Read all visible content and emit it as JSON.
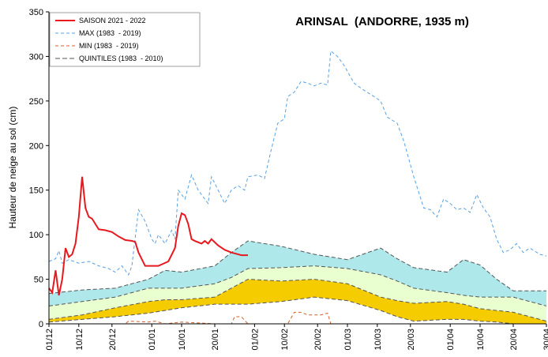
{
  "chart_data": {
    "type": "line",
    "title": "ARINSAL  (ANDORRE, 1935 m)",
    "y_label": "Hauteur de neige au sol (cm)",
    "xlim": [
      0,
      150
    ],
    "ylim": [
      0,
      350
    ],
    "yticks": [
      0,
      50,
      100,
      150,
      200,
      250,
      300,
      350
    ],
    "xticks": [
      {
        "value": 0,
        "label": "01/12"
      },
      {
        "value": 9,
        "label": "10/12"
      },
      {
        "value": 19,
        "label": "20/12"
      },
      {
        "value": 31,
        "label": "01/01"
      },
      {
        "value": 40,
        "label": "10/01"
      },
      {
        "value": 50,
        "label": "20/01"
      },
      {
        "value": 62,
        "label": "01/02"
      },
      {
        "value": 71,
        "label": "10/02"
      },
      {
        "value": 81,
        "label": "20/02"
      },
      {
        "value": 90,
        "label": "01/03"
      },
      {
        "value": 99,
        "label": "10/03"
      },
      {
        "value": 109,
        "label": "20/03"
      },
      {
        "value": 121,
        "label": "01/04"
      },
      {
        "value": 130,
        "label": "10/04"
      },
      {
        "value": 140,
        "label": "20/04"
      },
      {
        "value": 150,
        "label": "30/04"
      }
    ],
    "series": [
      {
        "name": "SAISON 2021 - 2022",
        "color": "#e8191e",
        "dash": "none",
        "width": 2,
        "x": [
          0,
          1,
          2,
          3,
          4,
          5,
          6,
          7,
          8,
          9,
          10,
          11,
          12,
          13,
          14,
          15,
          17,
          19,
          21,
          23,
          25,
          26,
          27,
          29,
          33,
          36,
          38,
          39,
          40,
          41,
          42,
          43,
          44,
          46,
          47,
          48,
          49,
          51,
          53,
          55,
          57,
          58,
          60
        ],
        "values": [
          40,
          35,
          60,
          32,
          50,
          85,
          75,
          78,
          90,
          120,
          165,
          130,
          120,
          118,
          112,
          106,
          105,
          103,
          98,
          94,
          93,
          92,
          80,
          65,
          65,
          70,
          85,
          110,
          124,
          122,
          112,
          95,
          93,
          90,
          93,
          90,
          95,
          88,
          83,
          80,
          78,
          77,
          77
        ]
      },
      {
        "name": "MAX (1983  - 2019)",
        "color": "#5aa0e0",
        "dash": "4,3",
        "width": 1,
        "x": [
          0,
          2,
          3,
          4,
          6,
          9,
          12,
          15,
          18,
          20,
          22,
          24,
          25,
          27,
          29,
          31,
          32,
          33,
          35,
          37,
          38,
          39,
          41,
          43,
          45,
          47,
          48,
          49,
          51,
          53,
          55,
          57,
          59,
          60,
          63,
          65,
          67,
          69,
          71,
          72,
          74,
          76,
          78,
          80,
          82,
          84,
          85,
          87,
          89,
          92,
          95,
          98,
          100,
          102,
          105,
          107,
          110,
          113,
          115,
          117,
          119,
          121,
          123,
          125,
          127,
          129,
          131,
          133,
          135,
          137,
          139,
          141,
          143,
          145,
          148,
          150
        ],
        "values": [
          70,
          73,
          82,
          68,
          72,
          68,
          70,
          65,
          62,
          58,
          65,
          55,
          65,
          128,
          115,
          95,
          90,
          100,
          90,
          105,
          95,
          150,
          140,
          167,
          150,
          140,
          135,
          165,
          150,
          135,
          150,
          155,
          150,
          165,
          167,
          163,
          195,
          225,
          230,
          255,
          260,
          272,
          270,
          267,
          270,
          268,
          306,
          300,
          290,
          270,
          262,
          255,
          250,
          232,
          225,
          205,
          165,
          130,
          128,
          120,
          140,
          135,
          128,
          130,
          125,
          145,
          130,
          120,
          95,
          80,
          83,
          90,
          80,
          85,
          78,
          76
        ]
      },
      {
        "name": "MIN (1983  - 2019)",
        "color": "#d0602a",
        "dash": "4,3",
        "width": 1,
        "x": [
          0,
          23,
          24,
          30,
          32,
          35,
          40,
          45,
          50,
          55,
          56,
          58,
          60,
          72,
          74,
          76,
          78,
          82,
          84,
          85,
          150
        ],
        "values": [
          0,
          0,
          3,
          2,
          3,
          0,
          2,
          1,
          0,
          0,
          8,
          8,
          0,
          0,
          13,
          13,
          10,
          10,
          12,
          0,
          0
        ]
      }
    ],
    "quintiles": {
      "name": "QUINTILES (1983  - 2010)",
      "color": "#555555",
      "fill_colors": [
        "#f5cc00",
        "#eaffd0",
        "#aee8ea"
      ],
      "x": [
        0,
        10,
        20,
        30,
        35,
        40,
        50,
        55,
        60,
        70,
        80,
        90,
        100,
        105,
        110,
        120,
        125,
        130,
        135,
        140,
        150
      ],
      "lines": [
        [
          2,
          5,
          8,
          12,
          15,
          18,
          22,
          22,
          22,
          25,
          30,
          26,
          15,
          8,
          3,
          5,
          5,
          3,
          2,
          0,
          0
        ],
        [
          5,
          10,
          18,
          25,
          27,
          27,
          30,
          40,
          50,
          48,
          50,
          45,
          30,
          26,
          23,
          25,
          22,
          17,
          15,
          13,
          3
        ],
        [
          20,
          25,
          30,
          40,
          40,
          40,
          45,
          52,
          62,
          63,
          65,
          62,
          55,
          48,
          40,
          35,
          32,
          30,
          30,
          30,
          20
        ],
        [
          34,
          38,
          40,
          50,
          60,
          58,
          65,
          80,
          93,
          87,
          78,
          72,
          85,
          73,
          63,
          58,
          72,
          66,
          50,
          37,
          37
        ]
      ]
    }
  }
}
